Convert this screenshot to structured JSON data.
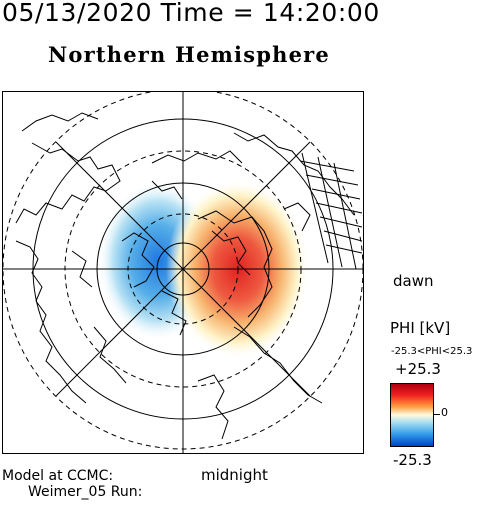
{
  "header": {
    "datetime": "05/13/2020 Time = 14:20:00"
  },
  "map": {
    "title": "Northern Hemisphere",
    "dawn_label": "dawn",
    "midnight_label": "midnight"
  },
  "colorbar": {
    "title": "PHI [kV]",
    "range_text": "-25.3<PHI<25.3",
    "max_label": "+25.3",
    "zero_label": "0",
    "min_label": "-25.3",
    "colors": {
      "positive": "#e02020",
      "negative": "#2f96e8",
      "neutral": "#ffffff"
    }
  },
  "footer": {
    "line1": "Model at CCMC:",
    "line2": "Weimer_05 Run:"
  }
}
